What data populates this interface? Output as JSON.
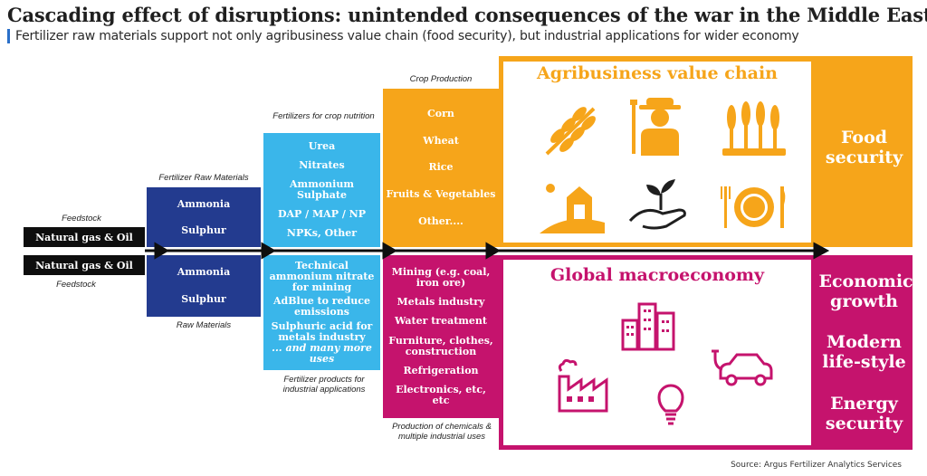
{
  "title": "Cascading effect of disruptions: unintended consequences of the war in the Middle East",
  "subtitle": "Fertilizer raw materials support not only agribusiness value chain (food security), but industrial applications for wider economy",
  "feedstock": {
    "top_caption": "Feedstock",
    "bottom_caption": "Feedstock",
    "top_label": "Natural gas & Oil",
    "bottom_label": "Natural gas & Oil"
  },
  "raw_materials": {
    "top_caption": "Fertilizer Raw Materials",
    "bottom_caption": "Raw Materials",
    "top_items": [
      "Ammonia",
      "Sulphur"
    ],
    "bottom_items": [
      "Ammonia",
      "Sulphur"
    ]
  },
  "fertilizers": {
    "top_caption": "Fertilizers for crop nutrition",
    "bottom_caption": "Fertilizer products for industrial applications",
    "top_items": [
      "Urea",
      "Nitrates",
      "Ammonium Sulphate",
      "DAP / MAP / NP",
      "NPKs, Other"
    ],
    "bottom_items": [
      "Technical ammonium nitrate for mining",
      "AdBlue to reduce emissions",
      "Sulphuric acid for metals industry"
    ],
    "bottom_more": "... and many more uses"
  },
  "crops": {
    "top_caption": "Crop Production",
    "bottom_caption": "Production of chemicals & multiple industrial uses",
    "top_items": [
      "Corn",
      "Wheat",
      "Rice",
      "Fruits & Vegetables",
      "Other...."
    ],
    "bottom_items": [
      "Mining (e.g. coal, iron ore)",
      "Metals industry",
      "Water treatment",
      "Furniture, clothes, construction",
      "Refrigeration",
      "Electronics, etc, etc"
    ]
  },
  "agri_panel": {
    "title": "Agribusiness value chain",
    "icons": [
      "wheat-icon",
      "farmer-icon",
      "crops-icon",
      "barn-icon",
      "seedling-hand-icon",
      "plate-cutlery-icon"
    ]
  },
  "macro_panel": {
    "title": "Global macroeconomy",
    "icons": [
      "buildings-icon",
      "electric-car-icon",
      "factory-icon",
      "lightbulb-icon"
    ]
  },
  "outcomes": {
    "top": [
      "Food security"
    ],
    "bottom": [
      "Economic growth",
      "Modern life-style",
      "Energy security"
    ]
  },
  "source": "Source: Argus Fertilizer Analytics Services",
  "colors": {
    "navy": "#233b8f",
    "cyan": "#3ab6ea",
    "orange": "#f6a51a",
    "magenta": "#c5136d",
    "black": "#0e0e0e"
  }
}
